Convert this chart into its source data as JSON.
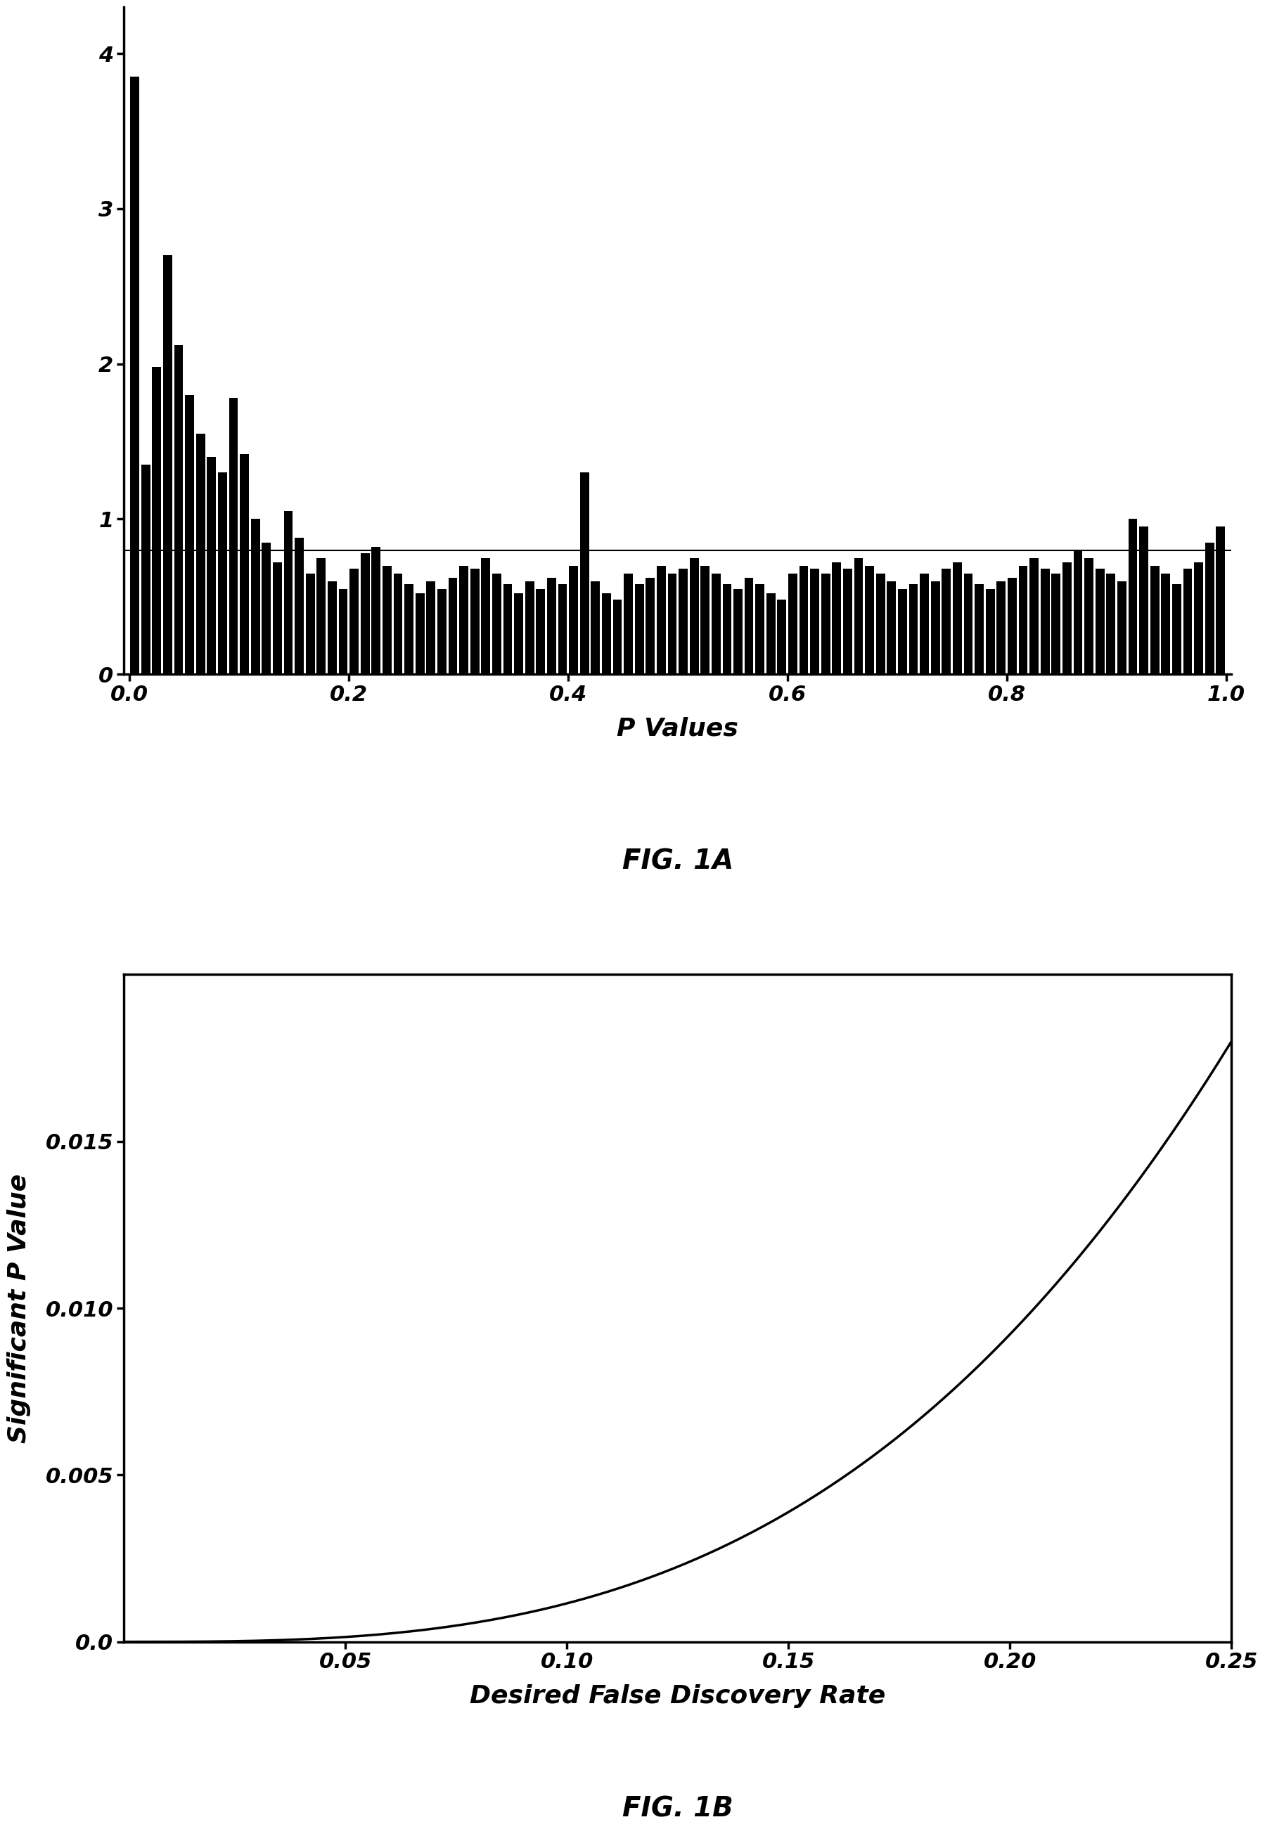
{
  "fig1a": {
    "title": "FIG. 1A",
    "xlabel": "P Values",
    "ylim": [
      0,
      4.3
    ],
    "xlim": [
      -0.005,
      1.005
    ],
    "yticks": [
      0,
      1,
      2,
      3,
      4
    ],
    "xticks": [
      0.0,
      0.2,
      0.4,
      0.6,
      0.8,
      1.0
    ],
    "hline_y": 0.8,
    "n_bins": 100,
    "bar_color": "#000000",
    "bar_heights": [
      3.85,
      1.35,
      1.98,
      2.7,
      2.12,
      1.8,
      1.55,
      1.4,
      1.3,
      1.78,
      1.42,
      1.0,
      0.85,
      0.72,
      1.05,
      0.88,
      0.65,
      0.75,
      0.6,
      0.55,
      0.68,
      0.78,
      0.82,
      0.7,
      0.65,
      0.58,
      0.52,
      0.6,
      0.55,
      0.62,
      0.7,
      0.68,
      0.75,
      0.65,
      0.58,
      0.52,
      0.6,
      0.55,
      0.62,
      0.58,
      0.7,
      1.3,
      0.6,
      0.52,
      0.48,
      0.65,
      0.58,
      0.62,
      0.7,
      0.65,
      0.68,
      0.75,
      0.7,
      0.65,
      0.58,
      0.55,
      0.62,
      0.58,
      0.52,
      0.48,
      0.65,
      0.7,
      0.68,
      0.65,
      0.72,
      0.68,
      0.75,
      0.7,
      0.65,
      0.6,
      0.55,
      0.58,
      0.65,
      0.6,
      0.68,
      0.72,
      0.65,
      0.58,
      0.55,
      0.6,
      0.62,
      0.7,
      0.75,
      0.68,
      0.65,
      0.72,
      0.8,
      0.75,
      0.68,
      0.65,
      0.6,
      1.0,
      0.95,
      0.7,
      0.65,
      0.58,
      0.68,
      0.72,
      0.85,
      0.95
    ]
  },
  "fig1b": {
    "title": "FIG. 1B",
    "xlabel": "Desired False Discovery Rate",
    "ylabel": "Significant P Value",
    "xlim": [
      0.0,
      0.25
    ],
    "ylim": [
      0.0,
      0.02
    ],
    "xticks": [
      0.05,
      0.1,
      0.15,
      0.2,
      0.25
    ],
    "xtick_labels": [
      "0.05",
      "0.10",
      "0.15",
      "0.20",
      "0.25"
    ],
    "yticks": [
      0.0,
      0.005,
      0.01,
      0.015
    ],
    "ytick_labels": [
      "0.0",
      "0.005",
      "0.010",
      "0.015"
    ],
    "curve_power": 3.0,
    "curve_scale": 0.018
  },
  "background_color": "#ffffff",
  "line_color": "#000000",
  "text_color": "#000000"
}
